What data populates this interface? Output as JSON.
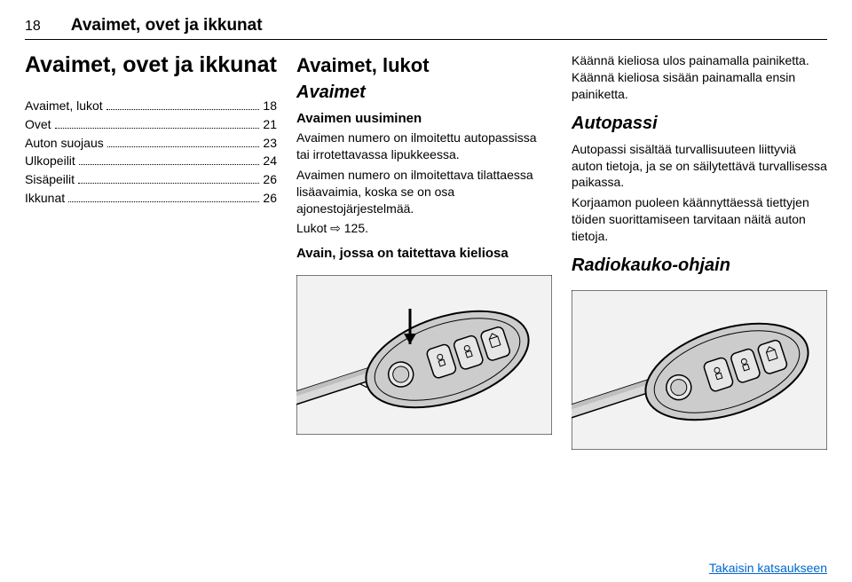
{
  "header": {
    "pageNumber": "18",
    "title": "Avaimet, ovet ja ikkunat"
  },
  "col1": {
    "title": "Avaimet, ovet ja ikkunat",
    "toc": [
      {
        "label": "Avaimet, lukot",
        "page": "18"
      },
      {
        "label": "Ovet",
        "page": "21"
      },
      {
        "label": "Auton suojaus",
        "page": "23"
      },
      {
        "label": "Ulkopeilit",
        "page": "24"
      },
      {
        "label": "Sisäpeilit",
        "page": "26"
      },
      {
        "label": "Ikkunat",
        "page": "26"
      }
    ]
  },
  "col2": {
    "h2": "Avaimet, lukot",
    "h3": "Avaimet",
    "h4a": "Avaimen uusiminen",
    "p1": "Avaimen numero on ilmoitettu autopassissa tai irrotettavassa lipukkeessa.",
    "p2": "Avaimen numero on ilmoitettava tilattaessa lisäavaimia, koska se on osa ajonestojärjestelmää.",
    "p3": "Lukot ⇨ 125.",
    "h4b": "Avain, jossa on taitettava kieliosa"
  },
  "col3": {
    "p1": "Käännä kieliosa ulos painamalla painiketta. Käännä kieliosa sisään painamalla ensin painiketta.",
    "h3a": "Autopassi",
    "p2": "Autopassi sisältää turvallisuuteen liittyviä auton tietoja, ja se on säilytettävä turvallisessa paikassa.",
    "p3": "Korjaamon puoleen käännyttäessä tiettyjen töiden suorittamiseen tarvitaan näitä auton tietoja.",
    "h3b": "Radiokauko-ohjain"
  },
  "footer": {
    "linkText": "Takaisin katsaukseen"
  },
  "figure": {
    "bg": "#f2f2f2",
    "bodyFill": "#cccccc",
    "bodyStroke": "#000000",
    "buttonFill": "#e6e6e6",
    "bladeFill": "#d9d9d9",
    "arrowFill": "#000000"
  }
}
